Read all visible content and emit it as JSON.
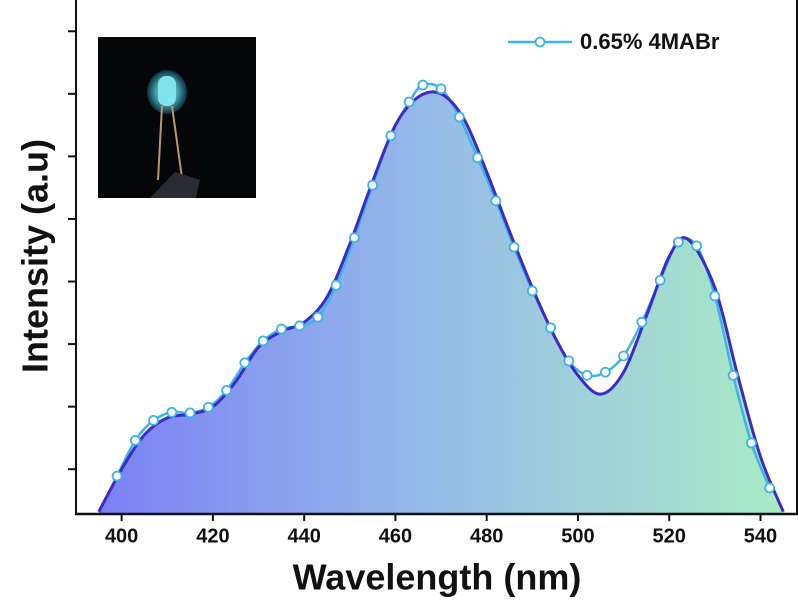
{
  "chart_data": {
    "type": "line",
    "xlabel": "Wavelength (nm)",
    "ylabel": "Intensity (a.u)",
    "xlim": [
      390,
      548
    ],
    "ylim": [
      0.3,
      8.5
    ],
    "xticks": [
      400,
      420,
      440,
      460,
      480,
      500,
      520,
      540
    ],
    "yticks": [
      1,
      2,
      3,
      4,
      5,
      6,
      7,
      8
    ],
    "legend": "upper right",
    "series": [
      {
        "name": "0.65% 4MABr",
        "color": "#3fb3e3",
        "markers": true,
        "x": [
          399,
          403,
          407,
          411,
          415,
          419,
          423,
          427,
          431,
          435,
          439,
          443,
          447,
          451,
          455,
          459,
          463,
          466,
          470,
          474,
          478,
          482,
          486,
          490,
          494,
          498,
          502,
          506,
          510,
          514,
          518,
          522,
          526,
          530,
          534,
          538,
          542
        ],
        "values": [
          0.89,
          1.46,
          1.78,
          1.91,
          1.9,
          1.99,
          2.26,
          2.7,
          3.05,
          3.24,
          3.29,
          3.43,
          3.94,
          4.7,
          5.54,
          6.33,
          6.87,
          7.14,
          7.08,
          6.63,
          5.98,
          5.29,
          4.55,
          3.85,
          3.26,
          2.73,
          2.5,
          2.55,
          2.81,
          3.35,
          4.02,
          4.63,
          4.57,
          3.77,
          2.5,
          1.42,
          0.7
        ]
      },
      {
        "color": "#3a2cc4",
        "fill": true,
        "x": [
          395,
          400,
          405,
          410,
          415,
          420,
          425,
          430,
          435,
          440,
          445,
          450,
          455,
          460,
          465,
          470,
          475,
          480,
          485,
          490,
          495,
          500,
          505,
          510,
          515,
          520,
          524,
          530,
          535,
          540,
          545
        ],
        "values": [
          0.32,
          1.0,
          1.55,
          1.82,
          1.88,
          2.0,
          2.4,
          2.95,
          3.2,
          3.35,
          3.75,
          4.6,
          5.6,
          6.5,
          6.95,
          7.0,
          6.6,
          5.75,
          4.8,
          3.9,
          3.1,
          2.5,
          2.2,
          2.55,
          3.45,
          4.4,
          4.68,
          3.9,
          2.5,
          1.2,
          0.32
        ]
      }
    ]
  }
}
